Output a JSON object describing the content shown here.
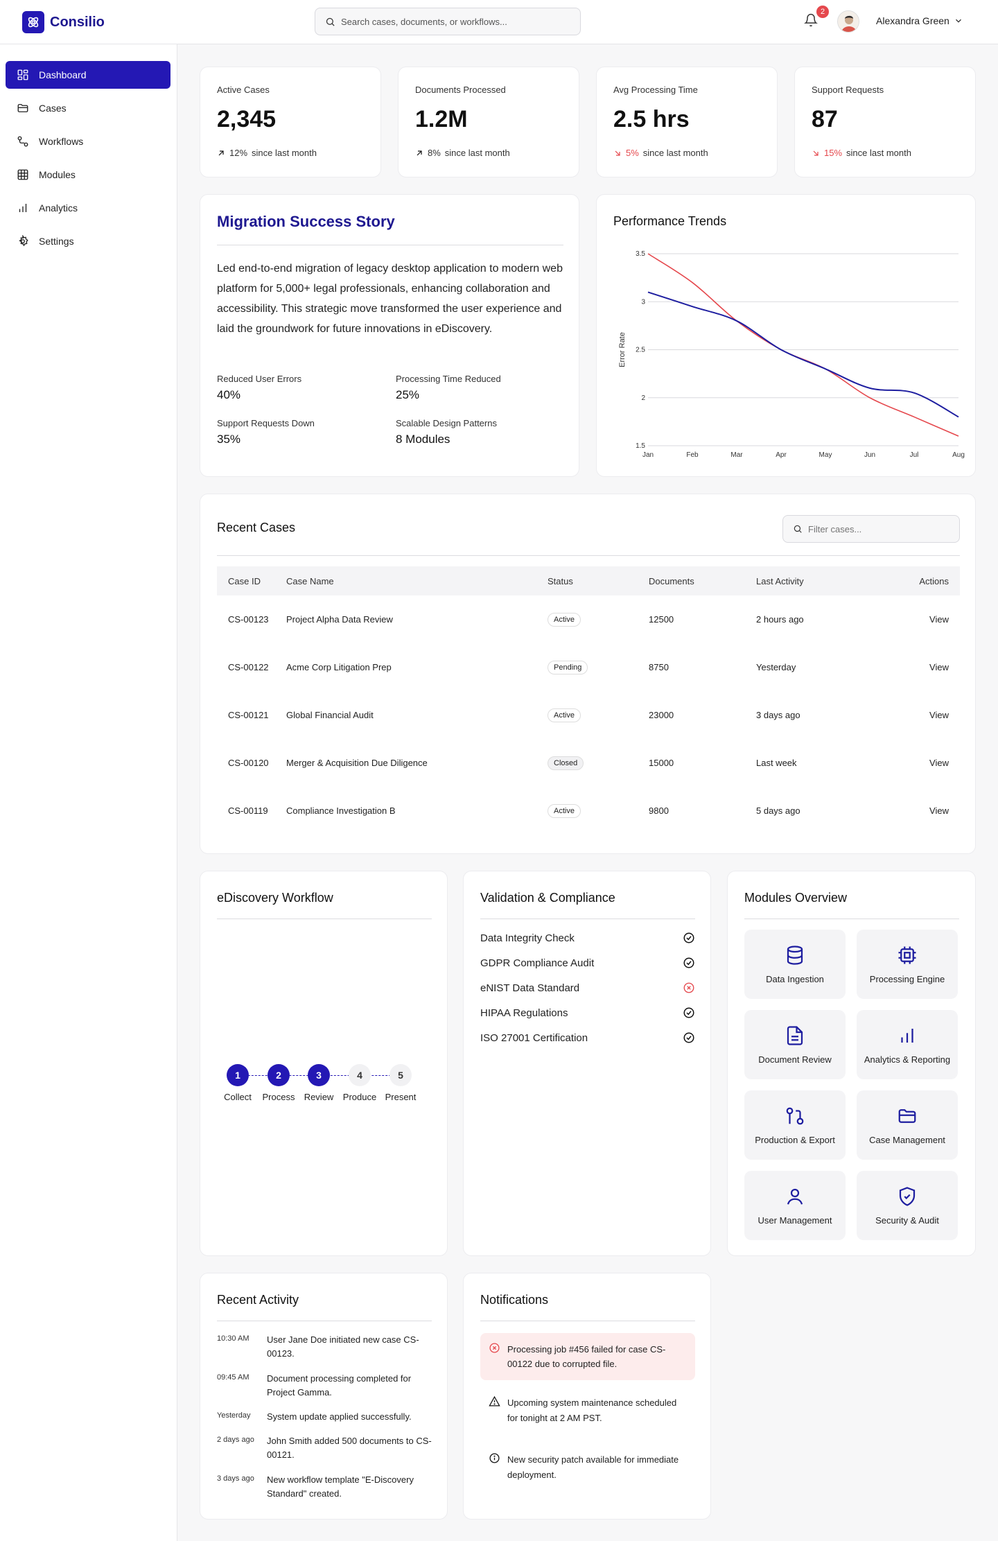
{
  "app": {
    "name": "Consilio"
  },
  "header": {
    "search_placeholder": "Search cases, documents, or workflows...",
    "notification_count": "2",
    "user_name": "Alexandra Green"
  },
  "sidebar": {
    "items": [
      {
        "label": "Dashboard",
        "icon": "grid-icon"
      },
      {
        "label": "Cases",
        "icon": "folder-icon"
      },
      {
        "label": "Workflows",
        "icon": "workflow-icon"
      },
      {
        "label": "Modules",
        "icon": "table-icon"
      },
      {
        "label": "Analytics",
        "icon": "bar-chart-icon"
      },
      {
        "label": "Settings",
        "icon": "gear-icon"
      }
    ]
  },
  "stats": [
    {
      "label": "Active Cases",
      "value": "2,345",
      "change": "12%",
      "direction": "up",
      "suffix": "since last month"
    },
    {
      "label": "Documents Processed",
      "value": "1.2M",
      "change": "8%",
      "direction": "up",
      "suffix": "since last month"
    },
    {
      "label": "Avg Processing Time",
      "value": "2.5 hrs",
      "change": "5%",
      "direction": "down",
      "suffix": "since last month"
    },
    {
      "label": "Support Requests",
      "value": "87",
      "change": "15%",
      "direction": "down",
      "suffix": "since last month"
    }
  ],
  "story": {
    "title": "Migration Success Story",
    "body": "Led end-to-end migration of legacy desktop application to modern web platform for 5,000+ legal professionals, enhancing collaboration and accessibility. This strategic move transformed the user experience and laid the groundwork for future innovations in eDiscovery.",
    "metrics": [
      {
        "label": "Reduced User Errors",
        "value": "40%"
      },
      {
        "label": "Processing Time Reduced",
        "value": "25%"
      },
      {
        "label": "Support Requests Down",
        "value": "35%"
      },
      {
        "label": "Scalable Design Patterns",
        "value": "8 Modules"
      }
    ]
  },
  "performance": {
    "title": "Performance Trends"
  },
  "chart_data": {
    "type": "line",
    "title": "Performance Trends",
    "ylabel": "Error Rate",
    "xlabel": "",
    "x": [
      "Jan",
      "Feb",
      "Mar",
      "Apr",
      "May",
      "Jun",
      "Jul",
      "Aug"
    ],
    "ylim": [
      1.5,
      3.5
    ],
    "yticks": [
      "3.5",
      "3",
      "2.5",
      "2",
      "1.5"
    ],
    "series": [
      {
        "color": "#e5484d",
        "values": [
          3.5,
          3.2,
          2.8,
          2.5,
          2.3,
          2.0,
          1.8,
          1.6
        ]
      },
      {
        "color": "#1e1ea0",
        "values": [
          3.1,
          2.95,
          2.8,
          2.5,
          2.3,
          2.1,
          2.05,
          1.8
        ]
      }
    ],
    "grid": true
  },
  "cases": {
    "title": "Recent Cases",
    "filter_placeholder": "Filter cases...",
    "columns": [
      "Case ID",
      "Case Name",
      "Status",
      "Documents",
      "Last Activity",
      "Actions"
    ],
    "rows": [
      {
        "id": "CS-00123",
        "name": "Project Alpha Data Review",
        "status": "Active",
        "docs": "12500",
        "activity": "2 hours ago",
        "action": "View"
      },
      {
        "id": "CS-00122",
        "name": "Acme Corp Litigation Prep",
        "status": "Pending",
        "docs": "8750",
        "activity": "Yesterday",
        "action": "View"
      },
      {
        "id": "CS-00121",
        "name": "Global Financial Audit",
        "status": "Active",
        "docs": "23000",
        "activity": "3 days ago",
        "action": "View"
      },
      {
        "id": "CS-00120",
        "name": "Merger & Acquisition Due Diligence",
        "status": "Closed",
        "docs": "15000",
        "activity": "Last week",
        "action": "View"
      },
      {
        "id": "CS-00119",
        "name": "Compliance Investigation B",
        "status": "Active",
        "docs": "9800",
        "activity": "5 days ago",
        "action": "View"
      }
    ]
  },
  "workflow": {
    "title": "eDiscovery Workflow",
    "steps": [
      {
        "n": "1",
        "label": "Collect",
        "done": true
      },
      {
        "n": "2",
        "label": "Process",
        "done": true
      },
      {
        "n": "3",
        "label": "Review",
        "done": true
      },
      {
        "n": "4",
        "label": "Produce",
        "done": false
      },
      {
        "n": "5",
        "label": "Present",
        "done": false
      }
    ]
  },
  "compliance": {
    "title": "Validation & Compliance",
    "items": [
      {
        "label": "Data Integrity Check",
        "ok": true
      },
      {
        "label": "GDPR Compliance Audit",
        "ok": true
      },
      {
        "label": "eNIST Data Standard",
        "ok": false
      },
      {
        "label": "HIPAA Regulations",
        "ok": true
      },
      {
        "label": "ISO 27001 Certification",
        "ok": true
      }
    ]
  },
  "modules": {
    "title": "Modules Overview",
    "items": [
      {
        "label": "Data Ingestion",
        "icon": "database-icon"
      },
      {
        "label": "Processing Engine",
        "icon": "cpu-icon"
      },
      {
        "label": "Document Review",
        "icon": "document-icon"
      },
      {
        "label": "Analytics & Reporting",
        "icon": "bar-chart-icon"
      },
      {
        "label": "Production & Export",
        "icon": "git-pull-icon"
      },
      {
        "label": "Case Management",
        "icon": "folder-open-icon"
      },
      {
        "label": "User Management",
        "icon": "user-icon"
      },
      {
        "label": "Security & Audit",
        "icon": "shield-check-icon"
      }
    ]
  },
  "activity": {
    "title": "Recent Activity",
    "items": [
      {
        "time": "10:30 AM",
        "text": "User Jane Doe initiated new case CS-00123."
      },
      {
        "time": "09:45 AM",
        "text": "Document processing completed for Project Gamma."
      },
      {
        "time": "Yesterday",
        "text": "System update applied successfully."
      },
      {
        "time": "2 days ago",
        "text": "John Smith added 500 documents to CS-00121."
      },
      {
        "time": "3 days ago",
        "text": "New workflow template \"E-Discovery Standard\" created."
      }
    ]
  },
  "notifications": {
    "title": "Notifications",
    "items": [
      {
        "type": "error",
        "text": "Processing job #456 failed for case CS-00122 due to corrupted file."
      },
      {
        "type": "warning",
        "text": "Upcoming system maintenance scheduled for tonight at 2 AM PST."
      },
      {
        "type": "info",
        "text": "New security patch available for immediate deployment."
      }
    ]
  },
  "colors": {
    "accent": "#2418b4",
    "danger": "#e5484d"
  }
}
